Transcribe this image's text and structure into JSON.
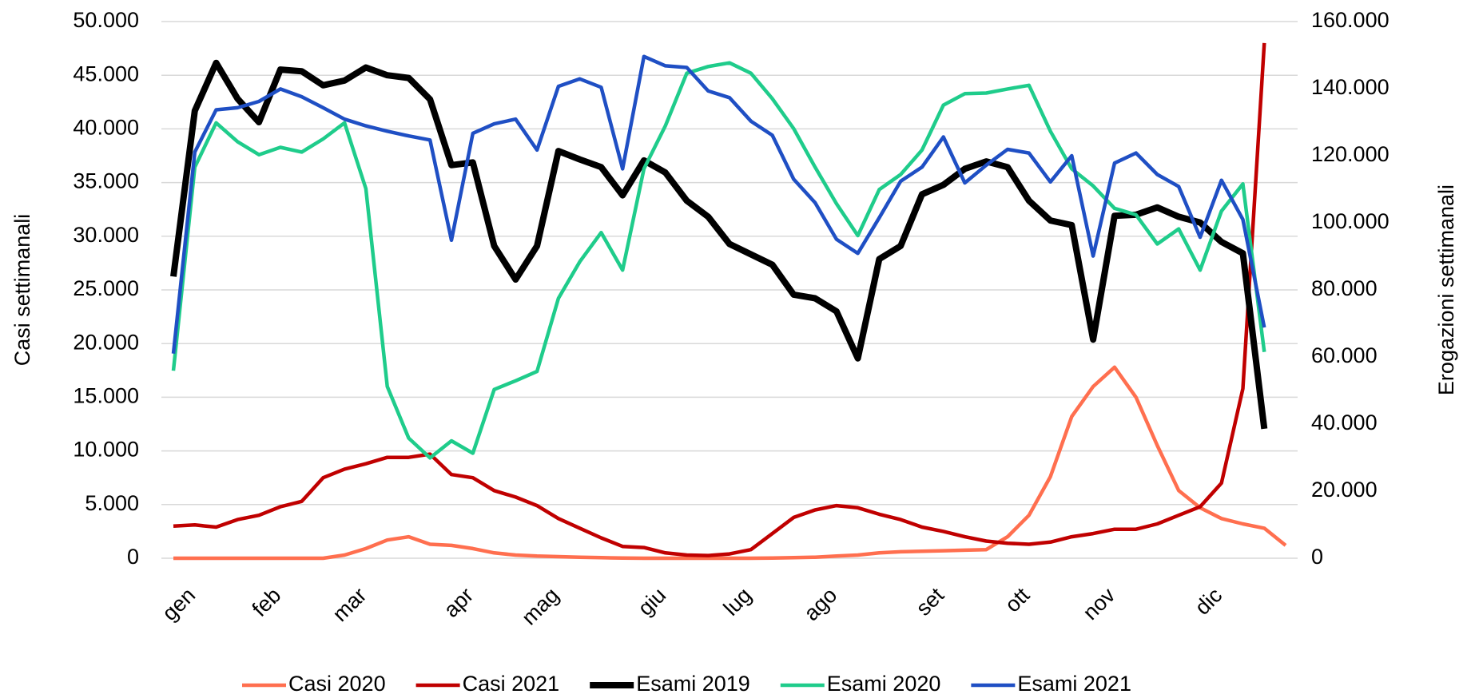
{
  "chart_data": {
    "type": "line",
    "y_label": "Casi settimanali",
    "y2_label": "Erogazioni settimanali",
    "categories": [
      "gen",
      null,
      null,
      null,
      "feb",
      null,
      null,
      null,
      "mar",
      null,
      null,
      null,
      null,
      "apr",
      null,
      null,
      null,
      "mag",
      null,
      null,
      null,
      null,
      "giu",
      null,
      null,
      null,
      "lug",
      null,
      null,
      null,
      "ago",
      null,
      null,
      null,
      null,
      "set",
      null,
      null,
      null,
      "ott",
      null,
      null,
      null,
      "nov",
      null,
      null,
      null,
      null,
      "dic",
      null,
      null,
      null,
      null
    ],
    "series": [
      {
        "name": "Casi 2020",
        "color": "#ff6f4f",
        "axis": "y",
        "values": [
          0,
          0,
          0,
          0,
          0,
          0,
          0,
          0,
          300,
          900,
          1700,
          2000,
          1300,
          1200,
          900,
          500,
          300,
          200,
          150,
          100,
          50,
          20,
          0,
          0,
          0,
          0,
          0,
          0,
          20,
          50,
          100,
          200,
          300,
          500,
          600,
          650,
          700,
          750,
          800,
          2000,
          4000,
          7600,
          13200,
          16000,
          17800,
          15000,
          10500,
          6300,
          4700,
          3700,
          3200,
          2800,
          1200
        ]
      },
      {
        "name": "Casi 2021",
        "color": "#c00000",
        "axis": "y",
        "values": [
          3000,
          3100,
          2900,
          3600,
          4000,
          4800,
          5300,
          7500,
          8300,
          8800,
          9400,
          9400,
          9700,
          7800,
          7500,
          6300,
          5700,
          4900,
          3700,
          2800,
          1900,
          1100,
          1000,
          500,
          300,
          250,
          400,
          800,
          2300,
          3800,
          4500,
          4900,
          4700,
          4100,
          3600,
          2900,
          2500,
          2000,
          1600,
          1400,
          1300,
          1500,
          2000,
          2300,
          2700,
          2700,
          3200,
          4000,
          4800,
          7000,
          15800,
          48000,
          null
        ]
      },
      {
        "name": "Esami 2019",
        "color": "#000000",
        "axis": "y2",
        "values": [
          84000,
          133400,
          147700,
          137000,
          130000,
          145700,
          145200,
          141000,
          142400,
          146300,
          144000,
          143200,
          136800,
          117200,
          118000,
          93100,
          83100,
          93100,
          121400,
          118900,
          116600,
          108200,
          118600,
          115000,
          106600,
          101800,
          93700,
          90600,
          87500,
          78600,
          77500,
          73600,
          59600,
          89200,
          93100,
          108500,
          111300,
          116100,
          118300,
          116600,
          106600,
          100700,
          99300,
          65200,
          102100,
          102400,
          104600,
          101800,
          100100,
          94300,
          90900,
          38600,
          null
        ]
      },
      {
        "name": "Esami 2020",
        "color": "#1fcc8b",
        "axis": "y2",
        "values": [
          55900,
          116600,
          129800,
          124200,
          120300,
          122500,
          121100,
          125000,
          129800,
          110200,
          51200,
          35800,
          29900,
          35000,
          31300,
          50300,
          52900,
          55700,
          77500,
          88400,
          97100,
          85900,
          116100,
          128900,
          144600,
          146600,
          147700,
          144600,
          137000,
          128100,
          116600,
          105700,
          96200,
          109900,
          114400,
          121700,
          135100,
          138500,
          138700,
          139900,
          141000,
          127300,
          116100,
          111000,
          104300,
          102400,
          93700,
          98200,
          85900,
          103500,
          111600,
          61500,
          null
        ]
      },
      {
        "name": "Esami 2021",
        "color": "#1f4fc4",
        "axis": "y2",
        "values": [
          61000,
          121100,
          133700,
          134300,
          136200,
          139900,
          137600,
          134300,
          130900,
          128900,
          127300,
          125900,
          124700,
          94800,
          126700,
          129500,
          130900,
          121700,
          140700,
          142900,
          140400,
          116100,
          149600,
          146800,
          146300,
          139300,
          137300,
          130300,
          126100,
          113000,
          106000,
          95100,
          90900,
          101500,
          112400,
          116600,
          125600,
          111900,
          117200,
          121900,
          120800,
          112200,
          120000,
          90100,
          117800,
          120800,
          114400,
          110800,
          95700,
          112700,
          101000,
          68800,
          null
        ]
      }
    ],
    "ylim": [
      0,
      50000
    ],
    "yticks": [
      0,
      {
        "value": 5000,
        "label": "5.000"
      },
      {
        "value": 10000,
        "label": "10.000"
      },
      {
        "value": 15000,
        "label": "15.000"
      },
      {
        "value": 20000,
        "label": "20.000"
      },
      {
        "value": 25000,
        "label": "25.000"
      },
      {
        "value": 30000,
        "label": "30.000"
      },
      {
        "value": 35000,
        "label": "35.000"
      },
      {
        "value": 40000,
        "label": "40.000"
      },
      {
        "value": 45000,
        "label": "45.000"
      },
      {
        "value": 50000,
        "label": "50.000"
      }
    ],
    "y2lim": [
      0,
      160000
    ],
    "y2ticks": [
      0,
      {
        "value": 20000,
        "label": "20.000"
      },
      {
        "value": 40000,
        "label": "40.000"
      },
      {
        "value": 60000,
        "label": "60.000"
      },
      {
        "value": 80000,
        "label": "80.000"
      },
      {
        "value": 100000,
        "label": "100.000"
      },
      {
        "value": 120000,
        "label": "120.000"
      },
      {
        "value": 140000,
        "label": "140.000"
      },
      {
        "value": 160000,
        "label": "160.000"
      }
    ],
    "grid": true,
    "legend": "bottom"
  }
}
